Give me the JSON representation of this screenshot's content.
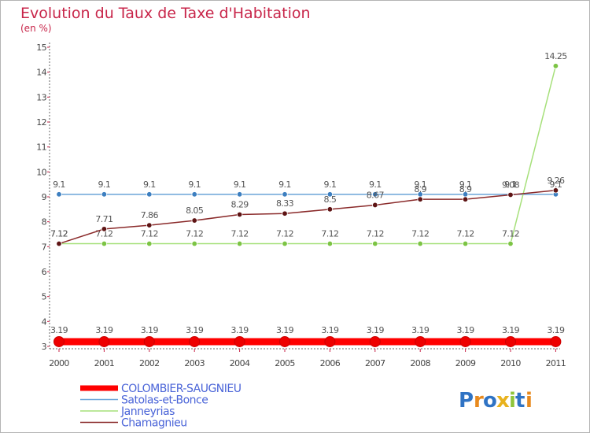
{
  "chart_data": {
    "type": "line",
    "title": "Evolution du Taux de Taxe d'Habitation",
    "subtitle": "(en %)",
    "xlabel": "",
    "ylabel": "",
    "x": [
      "2000",
      "2001",
      "2002",
      "2003",
      "2004",
      "2005",
      "2006",
      "2007",
      "2008",
      "2009",
      "2010",
      "2011"
    ],
    "ylim": [
      3,
      15
    ],
    "yticks": [
      "3",
      "4",
      "5",
      "6",
      "7",
      "8",
      "9",
      "10",
      "11",
      "12",
      "13",
      "14",
      "15"
    ],
    "grid": false,
    "legend_position": "bottom-left",
    "series": [
      {
        "name": "COLOMBIER-SAUGNIEU",
        "color": "#ff0000",
        "marker_color": "#ee0000",
        "emphasis": true,
        "values": [
          3.19,
          3.19,
          3.19,
          3.19,
          3.19,
          3.19,
          3.19,
          3.19,
          3.19,
          3.19,
          3.19,
          3.19
        ],
        "labels": [
          "3.19",
          "3.19",
          "3.19",
          "3.19",
          "3.19",
          "3.19",
          "3.19",
          "3.19",
          "3.19",
          "3.19",
          "3.19",
          "3.19"
        ]
      },
      {
        "name": "Satolas-et-Bonce",
        "color": "#6aa4d8",
        "marker_color": "#3d7fc0",
        "emphasis": false,
        "values": [
          9.1,
          9.1,
          9.1,
          9.1,
          9.1,
          9.1,
          9.1,
          9.1,
          9.1,
          9.1,
          9.1,
          9.1
        ],
        "labels": [
          "9.1",
          "9.1",
          "9.1",
          "9.1",
          "9.1",
          "9.1",
          "9.1",
          "9.1",
          "9.1",
          "9.1",
          "9.1",
          "9.1"
        ]
      },
      {
        "name": "Janneyrias",
        "color": "#a6e07a",
        "marker_color": "#7cc444",
        "emphasis": false,
        "values": [
          7.12,
          7.12,
          7.12,
          7.12,
          7.12,
          7.12,
          7.12,
          7.12,
          7.12,
          7.12,
          7.12,
          14.25
        ],
        "labels": [
          "7.12",
          "7.12",
          "7.12",
          "7.12",
          "7.12",
          "7.12",
          "7.12",
          "7.12",
          "7.12",
          "7.12",
          "7.12",
          "14.25"
        ]
      },
      {
        "name": "Chamagnieu",
        "color": "#8a2a2a",
        "marker_color": "#5e1414",
        "emphasis": false,
        "values": [
          7.12,
          7.71,
          7.86,
          8.05,
          8.29,
          8.33,
          8.5,
          8.67,
          8.9,
          8.9,
          9.08,
          9.26
        ],
        "labels": [
          "7.12",
          "7.71",
          "7.86",
          "8.05",
          "8.29",
          "8.33",
          "8.5",
          "8.67",
          "8.9",
          "8.9",
          "9.08",
          "9.26"
        ]
      }
    ]
  },
  "logo": {
    "text": "Proxiti",
    "letters": [
      "P",
      "r",
      "o",
      "x",
      "i",
      "t",
      "i"
    ],
    "colors": [
      "#2f73c4",
      "#e88a1e",
      "#2f73c4",
      "#e8b21e",
      "#8fc43a",
      "#2f73c4",
      "#e88a1e"
    ]
  }
}
